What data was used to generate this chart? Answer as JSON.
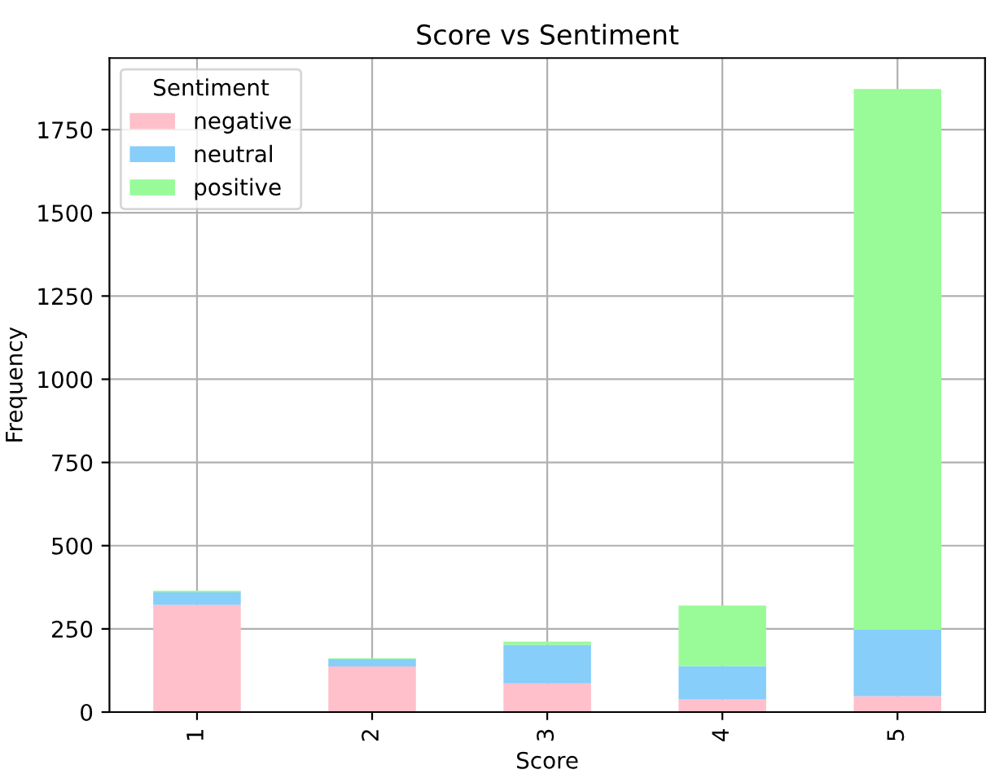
{
  "chart_data": {
    "type": "bar",
    "title": "Score vs Sentiment",
    "xlabel": "Score",
    "ylabel": "Frequency",
    "legend_title": "Sentiment",
    "categories": [
      "1",
      "2",
      "3",
      "4",
      "5"
    ],
    "stacked": true,
    "series": [
      {
        "name": "negative",
        "color": "#ffc0cb",
        "values": [
          322,
          137,
          86,
          38,
          48
        ]
      },
      {
        "name": "neutral",
        "color": "#87cefa",
        "values": [
          38,
          23,
          116,
          100,
          199
        ]
      },
      {
        "name": "positive",
        "color": "#98fb98",
        "values": [
          5,
          2,
          10,
          182,
          1625
        ]
      }
    ],
    "ylim": [
      0,
      1965
    ],
    "yticks": [
      0,
      250,
      500,
      750,
      1000,
      1250,
      1500,
      1750
    ],
    "grid": true,
    "legend": "top left"
  }
}
